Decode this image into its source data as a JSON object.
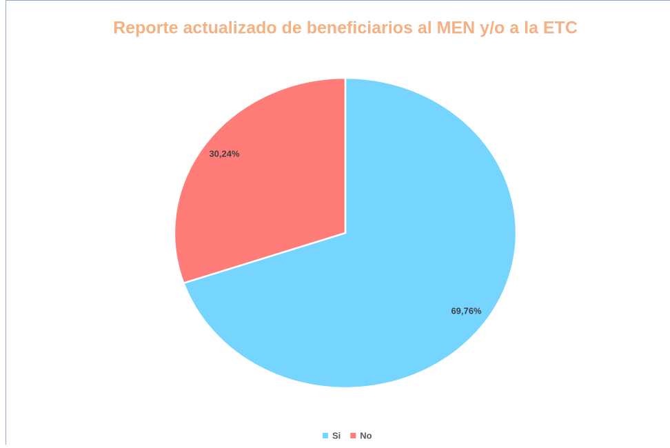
{
  "chart_data": {
    "type": "pie",
    "title": "Reporte actualizado de beneficiarios al MEN y/o a la ETC",
    "categories": [
      "Si",
      "No"
    ],
    "values": [
      69.76,
      30.24
    ],
    "value_labels": [
      "69,76%",
      "30,24%"
    ],
    "colors": [
      "#76d5fe",
      "#ff7c78"
    ],
    "legend": "bottom"
  }
}
